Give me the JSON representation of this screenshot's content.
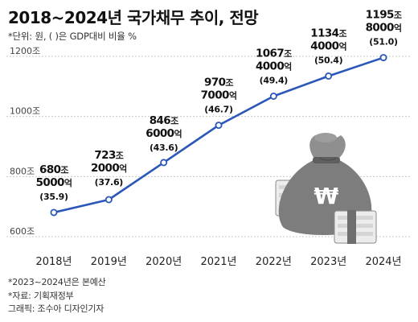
{
  "title": "2018~2024년 국가채무 추이, 전망",
  "subtitle": "*단위: 원, ( )은 GDP대비 비율 %",
  "notes": [
    "*2023~2024년은 본예산",
    "*자료: 기획재정부",
    "그래픽: 조수아 디자인기자"
  ],
  "colors": {
    "line": "#2a57b8",
    "marker_fill": "#ffffff",
    "grid": "#c8c8c8",
    "bag": "#7d7d7d"
  },
  "icon": "money-bag-icon",
  "chart_data": {
    "type": "line",
    "categories": [
      "2018년",
      "2019년",
      "2020년",
      "2021년",
      "2022년",
      "2023년",
      "2024년"
    ],
    "values": [
      680.5,
      723.2,
      846.6,
      970.7,
      1067.4,
      1134.4,
      1195.8
    ],
    "gdp_ratio": [
      35.9,
      37.6,
      43.6,
      46.7,
      49.4,
      50.4,
      51.0
    ],
    "labels": [
      {
        "main": "680",
        "unit": "조",
        "sub": "5000",
        "sub_unit": "억",
        "pct": "(35.9)"
      },
      {
        "main": "723",
        "unit": "조",
        "sub": "2000",
        "sub_unit": "억",
        "pct": "(37.6)"
      },
      {
        "main": "846",
        "unit": "조",
        "sub": "6000",
        "sub_unit": "억",
        "pct": "(43.6)"
      },
      {
        "main": "970",
        "unit": "조",
        "sub": "7000",
        "sub_unit": "억",
        "pct": "(46.7)"
      },
      {
        "main": "1067",
        "unit": "조",
        "sub": "4000",
        "sub_unit": "억",
        "pct": "(49.4)"
      },
      {
        "main": "1134",
        "unit": "조",
        "sub": "4000",
        "sub_unit": "억",
        "pct": "(50.4)"
      },
      {
        "main": "1195",
        "unit": "조",
        "sub": "8000",
        "sub_unit": "억",
        "pct": "(51.0)"
      }
    ],
    "yticks": [
      {
        "value": 600,
        "label": "600조"
      },
      {
        "value": 800,
        "label": "800조"
      },
      {
        "value": 1000,
        "label": "1000조"
      },
      {
        "value": 1200,
        "label": "1200조"
      }
    ],
    "ylim": [
      600,
      1200
    ],
    "grid": true,
    "xlabel": "",
    "ylabel": ""
  }
}
